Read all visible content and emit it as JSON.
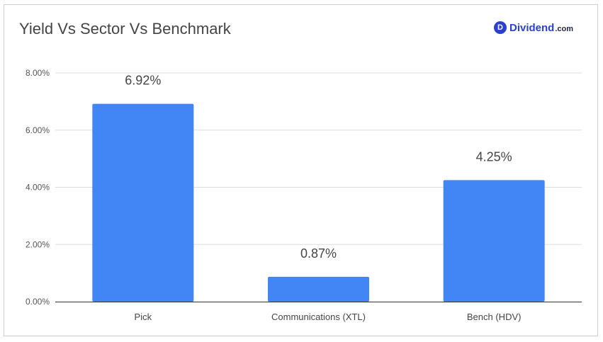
{
  "brand": {
    "mark": "D",
    "name": "Dividend",
    "tld": ".com"
  },
  "chart_data": {
    "type": "bar",
    "title": "Yield Vs Sector Vs Benchmark",
    "categories": [
      "Pick",
      "Communications (XTL)",
      "Bench (HDV)"
    ],
    "values": [
      6.92,
      0.87,
      4.25
    ],
    "data_labels": [
      "6.92%",
      "0.87%",
      "4.25%"
    ],
    "y_ticks": [
      0,
      2,
      4,
      6,
      8
    ],
    "y_tick_labels": [
      "0.00%",
      "2.00%",
      "4.00%",
      "6.00%",
      "8.00%"
    ],
    "ylim": [
      0,
      8
    ],
    "xlabel": "",
    "ylabel": "",
    "grid": true,
    "legend": "none",
    "bar_color": "#4285f4"
  }
}
